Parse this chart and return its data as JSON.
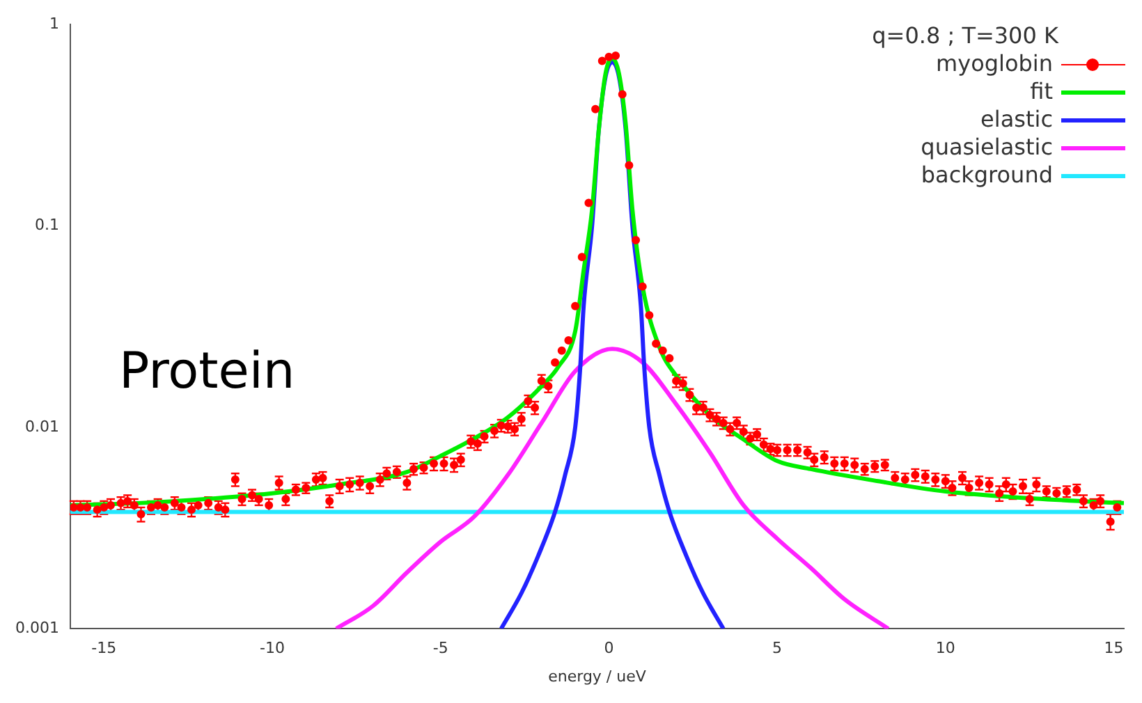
{
  "chart_data": {
    "type": "line",
    "xlabel": "energy / ueV",
    "legend_title": "q=0.8 ; T=300 K",
    "legend": "top right",
    "log": "y",
    "grid": false,
    "annotations": [
      "Protein"
    ],
    "xlim": [
      -16,
      15.3
    ],
    "xticks": [
      -15,
      -10,
      -5,
      0,
      5,
      10,
      15
    ],
    "ylim": [
      0.001,
      1
    ],
    "yticks": [
      0.001,
      0.01,
      0.1,
      1
    ],
    "series": [
      {
        "name": "myoglobin",
        "type": "scatter",
        "marker": "circle",
        "color": "#ff0000",
        "x": [
          -15.9,
          -15.7,
          -15.5,
          -15.2,
          -15.0,
          -14.8,
          -14.5,
          -14.3,
          -14.1,
          -13.9,
          -13.6,
          -13.4,
          -13.2,
          -12.9,
          -12.7,
          -12.4,
          -12.2,
          -11.9,
          -11.6,
          -11.4,
          -11.1,
          -10.9,
          -10.6,
          -10.4,
          -10.1,
          -9.8,
          -9.6,
          -9.3,
          -9.0,
          -8.7,
          -8.5,
          -8.3,
          -8.0,
          -7.7,
          -7.4,
          -7.1,
          -6.8,
          -6.6,
          -6.3,
          -6.0,
          -5.8,
          -5.5,
          -5.2,
          -4.9,
          -4.6,
          -4.4,
          -4.1,
          -3.9,
          -3.7,
          -3.4,
          -3.2,
          -3.0,
          -2.8,
          -2.6,
          -2.4,
          -2.2,
          -2.0,
          -1.8,
          -1.6,
          -1.4,
          -1.2,
          -1.0,
          -0.8,
          -0.6,
          -0.4,
          -0.2,
          0.0,
          0.2,
          0.4,
          0.6,
          0.8,
          1.0,
          1.2,
          1.4,
          1.6,
          1.8,
          2.0,
          2.2,
          2.4,
          2.6,
          2.8,
          3.0,
          3.2,
          3.4,
          3.6,
          3.8,
          4.0,
          4.2,
          4.4,
          4.6,
          4.8,
          5.0,
          5.3,
          5.6,
          5.9,
          6.1,
          6.4,
          6.7,
          7.0,
          7.3,
          7.6,
          7.9,
          8.2,
          8.5,
          8.8,
          9.1,
          9.4,
          9.7,
          10.0,
          10.2,
          10.5,
          10.7,
          11.0,
          11.3,
          11.6,
          11.8,
          12.0,
          12.3,
          12.5,
          12.7,
          13.0,
          13.3,
          13.6,
          13.9,
          14.1,
          14.4,
          14.6,
          14.9,
          15.1
        ],
        "values": [
          0.004,
          0.004,
          0.004,
          0.0039,
          0.004,
          0.0041,
          0.0042,
          0.0043,
          0.0041,
          0.0037,
          0.004,
          0.0041,
          0.004,
          0.0042,
          0.004,
          0.0039,
          0.0041,
          0.0042,
          0.004,
          0.0039,
          0.0055,
          0.0044,
          0.0046,
          0.0044,
          0.0041,
          0.0053,
          0.0044,
          0.0049,
          0.005,
          0.0055,
          0.0056,
          0.0043,
          0.0051,
          0.0052,
          0.0053,
          0.0051,
          0.0055,
          0.0059,
          0.006,
          0.0053,
          0.0062,
          0.0063,
          0.0066,
          0.0066,
          0.0065,
          0.0069,
          0.0085,
          0.0083,
          0.009,
          0.0096,
          0.0102,
          0.0101,
          0.0098,
          0.011,
          0.0135,
          0.0125,
          0.017,
          0.016,
          0.021,
          0.024,
          0.027,
          0.04,
          0.07,
          0.13,
          0.38,
          0.66,
          0.69,
          0.7,
          0.45,
          0.2,
          0.085,
          0.05,
          0.036,
          0.026,
          0.024,
          0.022,
          0.017,
          0.0165,
          0.0145,
          0.0125,
          0.0125,
          0.0115,
          0.011,
          0.0105,
          0.0098,
          0.0105,
          0.0095,
          0.0088,
          0.0092,
          0.0082,
          0.0078,
          0.0077,
          0.0077,
          0.0077,
          0.0075,
          0.0069,
          0.0071,
          0.0066,
          0.0066,
          0.0065,
          0.0062,
          0.0064,
          0.0065,
          0.0056,
          0.0055,
          0.0058,
          0.0057,
          0.0055,
          0.0054,
          0.005,
          0.0056,
          0.005,
          0.0053,
          0.0052,
          0.0047,
          0.0052,
          0.0048,
          0.0051,
          0.0044,
          0.0052,
          0.0048,
          0.0047,
          0.0048,
          0.0049,
          0.0043,
          0.0041,
          0.0043,
          0.0034,
          0.004
        ],
        "errors": [
          0.0003,
          0.0003,
          0.0003,
          0.0003,
          0.0003,
          0.0003,
          0.0003,
          0.0003,
          0.0003,
          0.0003,
          0.0003,
          0.0003,
          0.0003,
          0.0003,
          0.0003,
          0.0003,
          0.0003,
          0.0003,
          0.0003,
          0.0003,
          0.0004,
          0.0003,
          0.0003,
          0.0003,
          0.0003,
          0.0004,
          0.0003,
          0.0003,
          0.0003,
          0.0004,
          0.0004,
          0.0003,
          0.0004,
          0.0004,
          0.0004,
          0.0004,
          0.0004,
          0.0004,
          0.0004,
          0.0004,
          0.0004,
          0.0004,
          0.0005,
          0.0005,
          0.0005,
          0.0005,
          0.0006,
          0.0006,
          0.0006,
          0.0007,
          0.0007,
          0.0007,
          0.0007,
          0.0008,
          0.0009,
          0.0009,
          0.0012,
          0.0011,
          null,
          null,
          null,
          null,
          null,
          null,
          null,
          null,
          null,
          null,
          null,
          null,
          null,
          null,
          null,
          null,
          null,
          null,
          0.0012,
          0.0012,
          0.001,
          0.0009,
          0.0009,
          0.0008,
          0.0008,
          0.0007,
          0.0007,
          0.0007,
          0.0007,
          0.0006,
          0.0006,
          0.0006,
          0.0005,
          0.0005,
          0.0005,
          0.0005,
          0.0005,
          0.0005,
          0.0005,
          0.0005,
          0.0005,
          0.0005,
          0.0004,
          0.0004,
          0.0004,
          0.0004,
          0.0004,
          0.0004,
          0.0004,
          0.0004,
          0.0004,
          0.0004,
          0.0004,
          0.0004,
          0.0004,
          0.0004,
          0.0004,
          0.0004,
          0.0004,
          0.0004,
          0.0003,
          0.0004,
          0.0003,
          0.0003,
          0.0003,
          0.0003,
          0.0003,
          0.0003,
          0.0003,
          0.0003,
          0.0003
        ]
      },
      {
        "name": "fit",
        "color": "#00ee00",
        "x": [
          -16,
          -14,
          -12,
          -10,
          -8,
          -6,
          -5,
          -4,
          -3,
          -2,
          -1.5,
          -1,
          -0.75,
          -0.5,
          -0.3,
          -0.1,
          0.1,
          0.3,
          0.5,
          0.7,
          1,
          1.5,
          2,
          3,
          4,
          5,
          6,
          8,
          10,
          12,
          14,
          15.3
        ],
        "values": [
          0.0041,
          0.0042,
          0.0044,
          0.0047,
          0.0052,
          0.006,
          0.0072,
          0.0088,
          0.0112,
          0.016,
          0.02,
          0.03,
          0.06,
          0.12,
          0.3,
          0.57,
          0.68,
          0.57,
          0.32,
          0.12,
          0.05,
          0.025,
          0.018,
          0.0115,
          0.0087,
          0.0068,
          0.0062,
          0.0054,
          0.0048,
          0.0045,
          0.0043,
          0.0042
        ]
      },
      {
        "name": "elastic",
        "color": "#2222ff",
        "x": [
          -3.2,
          -2.6,
          -2.1,
          -1.6,
          -1.3,
          -1.0,
          -0.85,
          -0.75,
          -0.5,
          -0.3,
          -0.1,
          0.1,
          0.3,
          0.5,
          0.7,
          0.95,
          1.05,
          1.2,
          1.5,
          1.8,
          2.3,
          2.8,
          3.4
        ],
        "values": [
          0.001,
          0.0015,
          0.0023,
          0.0038,
          0.0058,
          0.01,
          0.02,
          0.04,
          0.1,
          0.3,
          0.55,
          0.65,
          0.55,
          0.3,
          0.1,
          0.04,
          0.02,
          0.01,
          0.0058,
          0.0038,
          0.0023,
          0.0015,
          0.001
        ]
      },
      {
        "name": "quasielastic",
        "color": "#ff22ff",
        "x": [
          -8.1,
          -7,
          -6,
          -5,
          -4,
          -3,
          -2,
          -1,
          0.1,
          1,
          2,
          3,
          4,
          5,
          6,
          7,
          8.3
        ],
        "values": [
          0.001,
          0.0013,
          0.0019,
          0.0027,
          0.0036,
          0.0058,
          0.0105,
          0.019,
          0.0245,
          0.021,
          0.013,
          0.0075,
          0.0041,
          0.0028,
          0.002,
          0.0014,
          0.001
        ]
      },
      {
        "name": "background",
        "color": "#22e8ff",
        "x": [
          -16,
          15.3
        ],
        "values": [
          0.0038,
          0.0038
        ]
      }
    ]
  }
}
